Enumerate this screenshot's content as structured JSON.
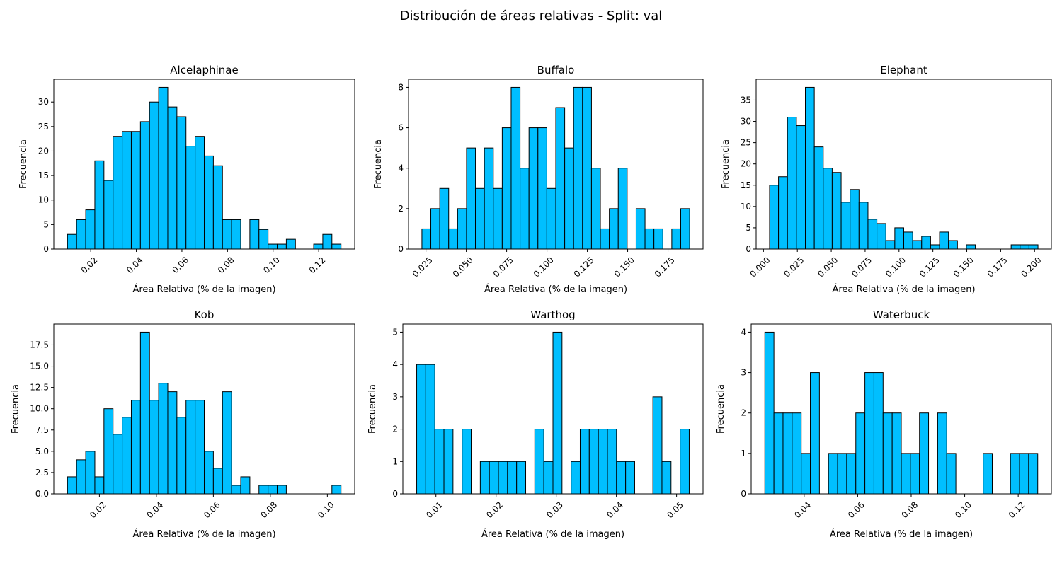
{
  "figure_title": "Distribución de áreas relativas - Split: val",
  "bar_color": "#00bfff",
  "edge_color": "#000000",
  "chart_data": [
    {
      "type": "bar",
      "title": "Alcelaphinae",
      "xlabel": "Área Relativa (% de la imagen)",
      "ylabel": "Frecuencia",
      "bin_start": 0.0098,
      "bin_width": 0.004,
      "values": [
        3,
        6,
        8,
        18,
        14,
        23,
        24,
        24,
        26,
        30,
        33,
        29,
        27,
        21,
        23,
        19,
        17,
        6,
        6,
        0,
        6,
        4,
        1,
        1,
        2,
        0,
        0,
        1,
        3,
        1
      ],
      "xlim": [
        0.0038,
        0.1358
      ],
      "ylim": [
        0,
        34.65
      ],
      "xticks": [
        0.02,
        0.04,
        0.06,
        0.08,
        0.1,
        0.12
      ],
      "xtick_labels": [
        "0.02",
        "0.04",
        "0.06",
        "0.08",
        "0.10",
        "0.12"
      ],
      "yticks": [
        0,
        5,
        10,
        15,
        20,
        25,
        30
      ],
      "ytick_labels": [
        "0",
        "5",
        "10",
        "15",
        "20",
        "25",
        "30"
      ]
    },
    {
      "type": "bar",
      "title": "Buffalo",
      "xlabel": "Área Relativa (% de la imagen)",
      "ylabel": "Frecuencia",
      "bin_start": 0.0225,
      "bin_width": 0.00553,
      "values": [
        1,
        2,
        3,
        1,
        2,
        5,
        3,
        5,
        3,
        6,
        8,
        4,
        6,
        6,
        3,
        7,
        5,
        8,
        8,
        4,
        1,
        2,
        4,
        0,
        2,
        1,
        1,
        0,
        1,
        2
      ],
      "xlim": [
        0.0142,
        0.1967
      ],
      "ylim": [
        0,
        8.4
      ],
      "xticks": [
        0.025,
        0.05,
        0.075,
        0.1,
        0.125,
        0.15,
        0.175
      ],
      "xtick_labels": [
        "0.025",
        "0.050",
        "0.075",
        "0.100",
        "0.125",
        "0.150",
        "0.175"
      ],
      "yticks": [
        0,
        2,
        4,
        6,
        8
      ],
      "ytick_labels": [
        "0",
        "2",
        "4",
        "6",
        "8"
      ]
    },
    {
      "type": "bar",
      "title": "Elephant",
      "xlabel": "Área Relativa (% de la imagen)",
      "ylabel": "Frecuencia",
      "bin_start": 0.0045,
      "bin_width": 0.0066,
      "values": [
        15,
        17,
        31,
        29,
        38,
        24,
        19,
        18,
        11,
        14,
        11,
        7,
        6,
        2,
        5,
        4,
        2,
        3,
        1,
        4,
        2,
        0,
        1,
        0,
        0,
        0,
        0,
        1,
        1,
        1
      ],
      "xlim": [
        -0.0054,
        0.2124
      ],
      "ylim": [
        0,
        39.9
      ],
      "xticks": [
        0.0,
        0.025,
        0.05,
        0.075,
        0.1,
        0.125,
        0.15,
        0.175,
        0.2
      ],
      "xtick_labels": [
        "0.000",
        "0.025",
        "0.050",
        "0.075",
        "0.100",
        "0.125",
        "0.150",
        "0.175",
        "0.200"
      ],
      "yticks": [
        0,
        5,
        10,
        15,
        20,
        25,
        30,
        35
      ],
      "ytick_labels": [
        "0",
        "5",
        "10",
        "15",
        "20",
        "25",
        "30",
        "35"
      ]
    },
    {
      "type": "bar",
      "title": "Kob",
      "xlabel": "Área Relativa (% de la imagen)",
      "ylabel": "Frecuencia",
      "bin_start": 0.0088,
      "bin_width": 0.0032,
      "values": [
        2,
        4,
        5,
        2,
        10,
        7,
        9,
        11,
        19,
        11,
        13,
        12,
        9,
        11,
        11,
        5,
        3,
        12,
        1,
        2,
        0,
        1,
        1,
        1,
        0,
        0,
        0,
        0,
        0,
        1
      ],
      "xlim": [
        0.004,
        0.1096
      ],
      "ylim": [
        0,
        19.95
      ],
      "xticks": [
        0.02,
        0.04,
        0.06,
        0.08,
        0.1
      ],
      "xtick_labels": [
        "0.02",
        "0.04",
        "0.06",
        "0.08",
        "0.10"
      ],
      "yticks": [
        0,
        2.5,
        5.0,
        7.5,
        10.0,
        12.5,
        15.0,
        17.5
      ],
      "ytick_labels": [
        "0.0",
        "2.5",
        "5.0",
        "7.5",
        "10.0",
        "12.5",
        "15.0",
        "17.5"
      ]
    },
    {
      "type": "bar",
      "title": "Warthog",
      "xlabel": "Área Relativa (% de la imagen)",
      "ylabel": "Frecuencia",
      "bin_start": 0.0068,
      "bin_width": 0.00151,
      "values": [
        4,
        4,
        2,
        2,
        0,
        2,
        0,
        1,
        1,
        1,
        1,
        1,
        0,
        2,
        1,
        5,
        0,
        1,
        2,
        2,
        2,
        2,
        1,
        1,
        0,
        0,
        3,
        1,
        0,
        2
      ],
      "xlim": [
        0.0045,
        0.0544
      ],
      "ylim": [
        0,
        5.25
      ],
      "xticks": [
        0.01,
        0.02,
        0.03,
        0.04,
        0.05
      ],
      "xtick_labels": [
        "0.01",
        "0.02",
        "0.03",
        "0.04",
        "0.05"
      ],
      "yticks": [
        0,
        1,
        2,
        3,
        4,
        5
      ],
      "ytick_labels": [
        "0",
        "1",
        "2",
        "3",
        "4",
        "5"
      ]
    },
    {
      "type": "bar",
      "title": "Waterbuck",
      "xlabel": "Área Relativa (% de la imagen)",
      "ylabel": "Frecuencia",
      "bin_start": 0.0253,
      "bin_width": 0.0034,
      "values": [
        4,
        2,
        2,
        2,
        1,
        3,
        0,
        1,
        1,
        1,
        2,
        3,
        3,
        2,
        2,
        1,
        1,
        2,
        0,
        2,
        1,
        0,
        0,
        0,
        1,
        0,
        0,
        1,
        1,
        1
      ],
      "xlim": [
        0.0202,
        0.1324
      ],
      "ylim": [
        0,
        4.2
      ],
      "xticks": [
        0.04,
        0.06,
        0.08,
        0.1,
        0.12
      ],
      "xtick_labels": [
        "0.04",
        "0.06",
        "0.08",
        "0.10",
        "0.12"
      ],
      "yticks": [
        0,
        1,
        2,
        3,
        4
      ],
      "ytick_labels": [
        "0",
        "1",
        "2",
        "3",
        "4"
      ]
    }
  ]
}
